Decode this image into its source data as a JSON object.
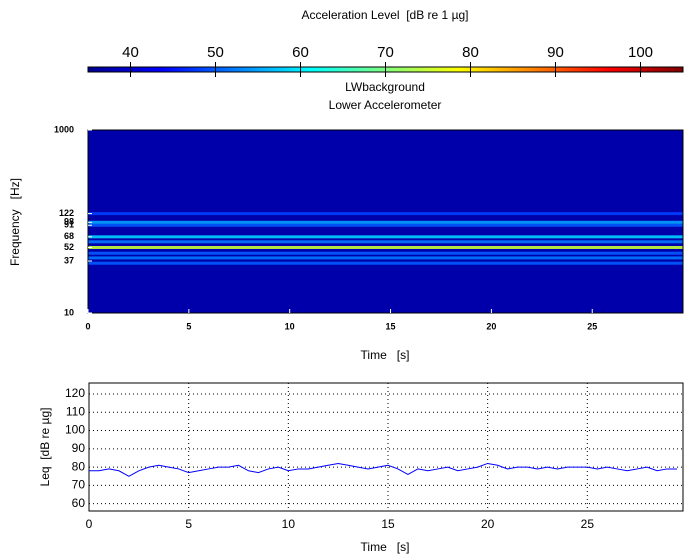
{
  "chart_data": [
    {
      "type": "colorbar",
      "label": "Acceleration Level  [dB re 1 µg]",
      "xlim": [
        35,
        105
      ],
      "xticks": [
        40,
        50,
        60,
        70,
        80,
        90,
        100
      ]
    },
    {
      "type": "spectrogram",
      "title": [
        "LWbackground",
        "Lower Accelerometer"
      ],
      "xlabel": "Time   [s]",
      "ylabel": "Frequency   [Hz]",
      "log_y": true,
      "xlim": [
        0,
        29.5
      ],
      "xticks": [
        0,
        5,
        10,
        15,
        20,
        25
      ],
      "ylim": [
        10,
        1000
      ],
      "yticks": [
        10,
        37,
        52,
        68,
        91,
        98,
        122,
        1000
      ],
      "background_level": 38,
      "bands": {
        "frequency": [
          35,
          40,
          45,
          52,
          60,
          68,
          91,
          98,
          122
        ],
        "level": [
          50,
          52,
          50,
          75,
          52,
          58,
          50,
          55,
          48
        ]
      }
    },
    {
      "type": "line",
      "xlabel": "Time   [s]",
      "ylabel": "Leq  [dB re µg]",
      "grid": true,
      "xlim": [
        0,
        29.8
      ],
      "xticks": [
        0,
        5,
        10,
        15,
        20,
        25
      ],
      "ylim": [
        56,
        126
      ],
      "yticks": [
        60,
        70,
        80,
        90,
        100,
        110,
        120
      ],
      "x": [
        0,
        0.5,
        1,
        1.5,
        2,
        2.5,
        3,
        3.5,
        4,
        4.5,
        5,
        5.5,
        6,
        6.5,
        7,
        7.5,
        8,
        8.5,
        9,
        9.5,
        10,
        10.5,
        11,
        11.5,
        12,
        12.5,
        13,
        13.5,
        14,
        14.5,
        15,
        15.5,
        16,
        16.5,
        17,
        17.5,
        18,
        18.5,
        19,
        19.5,
        20,
        20.5,
        21,
        21.5,
        22,
        22.5,
        23,
        23.5,
        24,
        24.5,
        25,
        25.5,
        26,
        26.5,
        27,
        27.5,
        28,
        28.5,
        29,
        29.5
      ],
      "series": [
        {
          "name": "Leq",
          "color": "#0000ff",
          "values": [
            78,
            78,
            79,
            78,
            75,
            78,
            80,
            81,
            80,
            79,
            77,
            78,
            79,
            80,
            80,
            81,
            78,
            77,
            79,
            80,
            78,
            79,
            79,
            80,
            81,
            82,
            81,
            80,
            79,
            80,
            81,
            79,
            76,
            79,
            78,
            79,
            80,
            78,
            79,
            80,
            82,
            81,
            79,
            80,
            80,
            79,
            80,
            79,
            80,
            80,
            80,
            79,
            80,
            79,
            78,
            79,
            80,
            78,
            79,
            79
          ]
        }
      ]
    }
  ]
}
